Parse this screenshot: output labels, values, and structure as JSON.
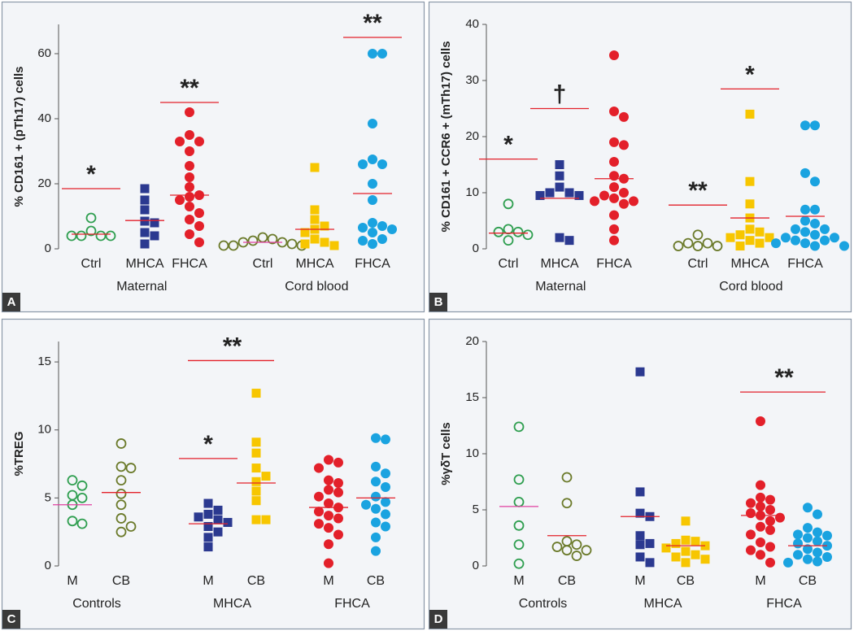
{
  "chart_data": [
    {
      "type": "dot",
      "panel": "A",
      "ylabel": "% CD161 + (pTh17) cells",
      "ylim": [
        0,
        69
      ],
      "yticks": [
        0,
        20,
        40,
        60
      ],
      "sections": [
        {
          "label": "Maternal",
          "groups": [
            {
              "name": "Ctrl",
              "color": "#2e9e4f",
              "marker": "open-circle",
              "values": [
                9.5,
                5.5,
                4,
                4,
                4,
                4
              ],
              "median": 4.5,
              "median_color": "#e3202a",
              "significance": {
                "label": "*",
                "value": 18.5
              }
            },
            {
              "name": "MHCA",
              "color": "#2b3990",
              "marker": "square",
              "values": [
                18.5,
                15,
                12,
                8.5,
                8,
                5,
                4,
                1.5
              ],
              "median": 8.7,
              "median_color": "#e3202a"
            },
            {
              "name": "FHCA",
              "color": "#e3202a",
              "marker": "circle",
              "values": [
                42,
                35,
                33,
                33,
                30,
                25.5,
                22,
                19,
                16.5,
                16,
                15,
                13,
                11,
                9,
                7,
                4.5,
                2
              ],
              "median": 16.5,
              "median_color": "#e3202a",
              "significance": {
                "label": "**",
                "value": 45
              }
            }
          ]
        },
        {
          "label": "Cord blood",
          "groups": [
            {
              "name": "Ctrl",
              "color": "#6b7a2a",
              "marker": "open-circle",
              "values": [
                3.5,
                3,
                2.5,
                2,
                2,
                1.5,
                1,
                1,
                1
              ],
              "median": 2,
              "median_color": "#e040a0"
            },
            {
              "name": "MHCA",
              "color": "#f7c600",
              "marker": "square",
              "values": [
                25,
                12,
                9,
                7,
                6,
                5,
                3,
                2,
                1.5,
                1
              ],
              "median": 6,
              "median_color": "#e3202a"
            },
            {
              "name": "FHCA",
              "color": "#1aa3e0",
              "marker": "circle",
              "values": [
                60,
                60,
                38.5,
                27.5,
                26,
                26,
                20,
                15,
                8,
                7,
                6.5,
                6,
                5,
                3,
                2.5,
                1.5
              ],
              "median": 17,
              "median_color": "#e3202a",
              "significance": {
                "label": "**",
                "value": 65
              }
            }
          ]
        }
      ]
    },
    {
      "type": "dot",
      "panel": "B",
      "ylabel": "% CD161 + CCR6 + (mTh17) cells",
      "ylim": [
        0,
        40
      ],
      "yticks": [
        0,
        10,
        20,
        30,
        40
      ],
      "sections": [
        {
          "label": "Maternal",
          "groups": [
            {
              "name": "Ctrl",
              "color": "#2e9e4f",
              "marker": "open-circle",
              "values": [
                8,
                3.5,
                3,
                3,
                2.5,
                1.5
              ],
              "median": 2.8,
              "median_color": "#e3202a",
              "significance": {
                "label": "*",
                "value": 16
              }
            },
            {
              "name": "MHCA",
              "color": "#2b3990",
              "marker": "square",
              "values": [
                15,
                13,
                11,
                10,
                10,
                9.5,
                9.5,
                2,
                1.5
              ],
              "median": 9,
              "median_color": "#e3202a",
              "significance": {
                "label": "†",
                "value": 25
              }
            },
            {
              "name": "FHCA",
              "color": "#e3202a",
              "marker": "circle",
              "values": [
                34.5,
                24.5,
                23.5,
                19,
                18.5,
                15.5,
                13,
                12.5,
                11,
                10,
                9.5,
                9,
                8.5,
                8.5,
                8,
                6,
                3.5,
                1.5
              ],
              "median": 12.5,
              "median_color": "#e3202a"
            }
          ]
        },
        {
          "label": "Cord blood",
          "groups": [
            {
              "name": "Ctrl",
              "color": "#6b7a2a",
              "marker": "open-circle",
              "values": [
                2.5,
                1,
                1,
                0.5,
                0.5,
                0.5
              ],
              "significance": {
                "label": "**",
                "value": 7.8
              }
            },
            {
              "name": "MHCA",
              "color": "#f7c600",
              "marker": "square",
              "values": [
                24,
                12,
                8,
                5.5,
                3.5,
                3,
                2.5,
                2,
                2,
                1.5,
                1,
                0.5
              ],
              "median": 5.5,
              "median_color": "#e3202a",
              "significance": {
                "label": "*",
                "value": 28.5
              }
            },
            {
              "name": "FHCA",
              "color": "#1aa3e0",
              "marker": "circle",
              "values": [
                22,
                22,
                13.5,
                12,
                7,
                7,
                5,
                4.5,
                3.5,
                3.5,
                3,
                2.5,
                2,
                2,
                1.5,
                1.5,
                1,
                1,
                0.5,
                0.5
              ],
              "median": 5.8,
              "median_color": "#e3202a"
            }
          ]
        }
      ]
    },
    {
      "type": "dot",
      "panel": "C",
      "ylabel": "%TREG",
      "ylim": [
        0,
        16.5
      ],
      "yticks": [
        0,
        5,
        10,
        15
      ],
      "sections": [
        {
          "label": "Controls",
          "groups": [
            {
              "name": "M",
              "color": "#2e9e4f",
              "marker": "open-circle",
              "values": [
                6.3,
                5.9,
                5.2,
                5,
                4.5,
                3.3,
                3.1
              ],
              "median": 4.5,
              "median_color": "#e040a0"
            },
            {
              "name": "CB",
              "color": "#6b7a2a",
              "marker": "open-circle",
              "values": [
                9,
                7.3,
                7.2,
                6.3,
                5.3,
                4.5,
                3.5,
                2.9,
                2.5
              ],
              "median": 5.4,
              "median_color": "#e3202a"
            }
          ]
        },
        {
          "label": "MHCA",
          "significance": {
            "label": "**",
            "value": 15.1
          },
          "groups": [
            {
              "name": "M",
              "color": "#2b3990",
              "marker": "square",
              "values": [
                4.6,
                4.1,
                3.8,
                3.6,
                3.4,
                3.2,
                2.9,
                2.5,
                2.1,
                1.4
              ],
              "median": 3.1,
              "median_color": "#e3202a",
              "significance": {
                "label": "*",
                "value": 7.9
              }
            },
            {
              "name": "CB",
              "color": "#f7c600",
              "marker": "square",
              "values": [
                12.7,
                9.1,
                8.3,
                7.2,
                6.6,
                6.2,
                5.5,
                4.8,
                3.4,
                3.4
              ],
              "median": 6.1,
              "median_color": "#e3202a"
            }
          ]
        },
        {
          "label": "FHCA",
          "groups": [
            {
              "name": "M",
              "color": "#e3202a",
              "marker": "circle",
              "values": [
                7.8,
                7.6,
                7.2,
                6.3,
                6.1,
                5.6,
                5.4,
                5.1,
                4.6,
                4.3,
                4,
                3.7,
                3.5,
                3.1,
                2.8,
                2.3,
                1.6,
                0.2
              ],
              "median": 4.3,
              "median_color": "#e3202a"
            },
            {
              "name": "CB",
              "color": "#1aa3e0",
              "marker": "circle",
              "values": [
                9.4,
                9.3,
                7.3,
                6.8,
                6.2,
                5.8,
                5.1,
                4.7,
                4.5,
                4.2,
                3.8,
                3.2,
                2.9,
                2.1,
                1.1
              ],
              "median": 5,
              "median_color": "#e3202a"
            }
          ]
        }
      ]
    },
    {
      "type": "dot",
      "panel": "D",
      "ylabel": "%γδT cells",
      "ylim": [
        0,
        20
      ],
      "yticks": [
        0,
        5,
        10,
        15,
        20
      ],
      "sections": [
        {
          "label": "Controls",
          "groups": [
            {
              "name": "M",
              "color": "#2e9e4f",
              "marker": "open-circle",
              "values": [
                12.4,
                7.7,
                5.7,
                3.6,
                1.9,
                0.2
              ],
              "median": 5.3,
              "median_color": "#e040a0"
            },
            {
              "name": "CB",
              "color": "#6b7a2a",
              "marker": "open-circle",
              "values": [
                7.9,
                5.6,
                2.2,
                1.9,
                1.7,
                1.4,
                1.4,
                0.9
              ],
              "median": 2.7,
              "median_color": "#e3202a"
            }
          ]
        },
        {
          "label": "MHCA",
          "groups": [
            {
              "name": "M",
              "color": "#2b3990",
              "marker": "square",
              "values": [
                17.3,
                6.6,
                4.7,
                4.4,
                2.7,
                2,
                1.9,
                0.8,
                0.3
              ],
              "median": 4.4,
              "median_color": "#e3202a"
            },
            {
              "name": "CB",
              "color": "#f7c600",
              "marker": "square",
              "values": [
                4,
                2.3,
                2.2,
                2,
                1.8,
                1.6,
                1.3,
                1,
                0.8,
                0.6,
                0.3
              ],
              "median": 1.8,
              "median_color": "#e3202a"
            }
          ]
        },
        {
          "label": "FHCA",
          "significance": {
            "label": "**",
            "value": 15.5
          },
          "groups": [
            {
              "name": "M",
              "color": "#e3202a",
              "marker": "circle",
              "values": [
                12.9,
                7.2,
                6.1,
                5.9,
                5.6,
                5.3,
                5,
                4.7,
                4.5,
                4.3,
                4,
                3.5,
                3.2,
                2.8,
                2.1,
                1.7,
                1.4,
                1,
                0.3
              ],
              "median": 4.5,
              "median_color": "#e3202a"
            },
            {
              "name": "CB",
              "color": "#1aa3e0",
              "marker": "circle",
              "values": [
                5.2,
                4.6,
                3.4,
                3,
                2.8,
                2.7,
                2.5,
                2.2,
                2,
                1.8,
                1.5,
                1.2,
                1,
                0.8,
                0.6,
                0.4,
                0.3
              ],
              "median": 1.8,
              "median_color": "#e3202a"
            }
          ]
        }
      ]
    }
  ]
}
